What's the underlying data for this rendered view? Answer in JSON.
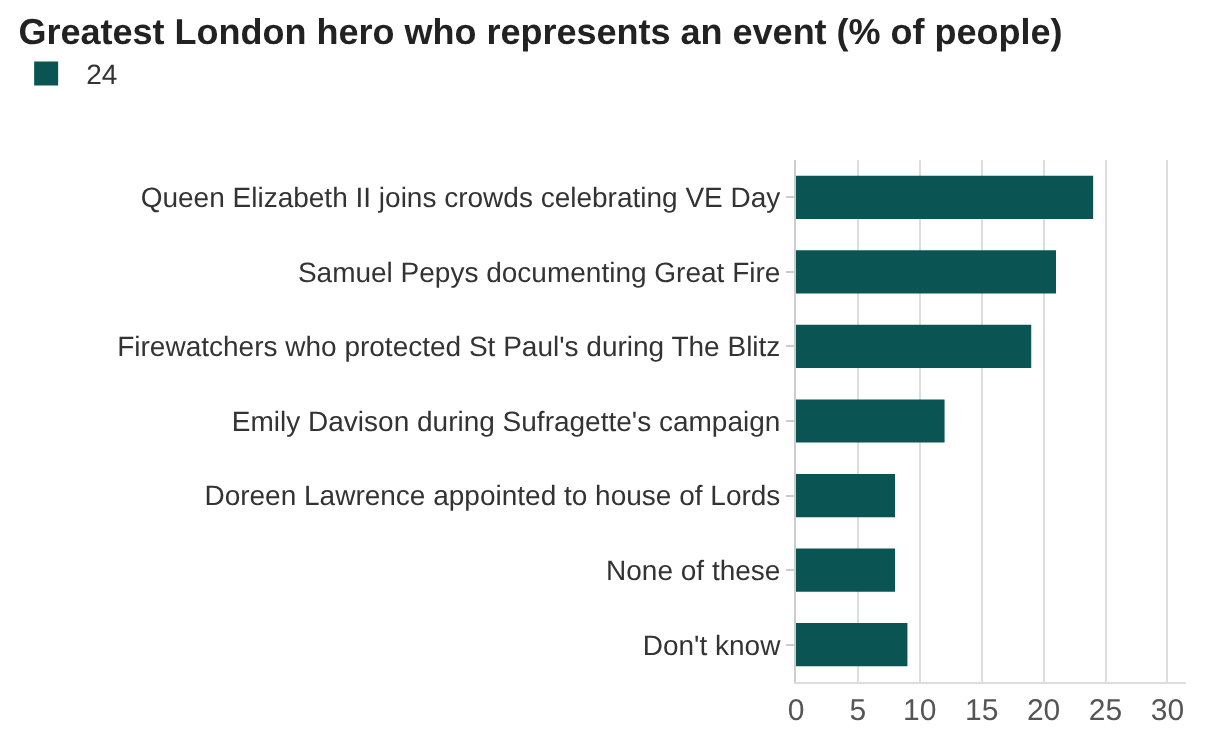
{
  "chart_data": {
    "type": "bar",
    "orientation": "horizontal",
    "title": "Greatest London hero who represents an event (% of people)",
    "categories": [
      "Queen Elizabeth II joins crowds celebrating VE Day",
      "Samuel Pepys documenting Great Fire",
      "Firewatchers who protected St Paul's during The Blitz",
      "Emily Davison during Sufragette's campaign",
      "Doreen Lawrence appointed to house of Lords",
      "None of these",
      "Don't know"
    ],
    "series": [
      {
        "name": "24",
        "color": "#0b5454",
        "values": [
          24,
          21,
          19,
          12,
          8,
          8,
          9
        ]
      }
    ],
    "xlim": [
      0,
      31.5
    ],
    "xticks": [
      0,
      5,
      10,
      15,
      20,
      25,
      30
    ],
    "grid": "x",
    "legend": "top left"
  }
}
